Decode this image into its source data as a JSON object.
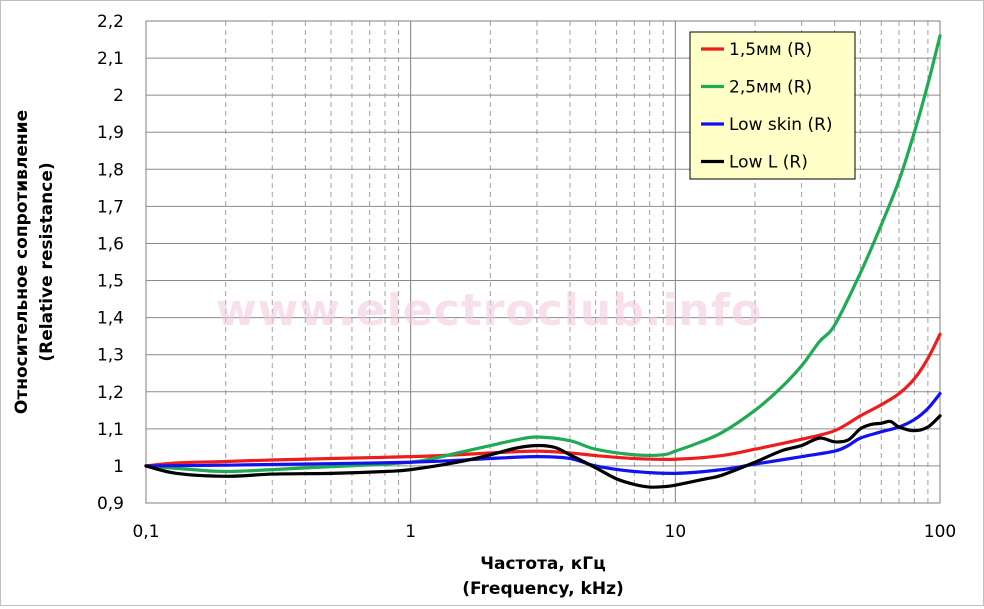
{
  "watermark": "www.electroclub.info",
  "chart_data": {
    "type": "line",
    "title": "",
    "xlabel": [
      "Частота, кГц",
      "(Frequency, kHz)"
    ],
    "ylabel": [
      "Относительное сопротивление",
      "(Relative resistance)"
    ],
    "x_scale": "log",
    "xlim": [
      0.1,
      100
    ],
    "ylim": [
      0.9,
      2.2
    ],
    "x_ticks": [
      0.1,
      1,
      10,
      100
    ],
    "x_tick_labels": [
      "0,1",
      "1",
      "10",
      "100"
    ],
    "y_ticks": [
      0.9,
      1,
      1.1,
      1.2,
      1.3,
      1.4,
      1.5,
      1.6,
      1.7,
      1.8,
      1.9,
      2,
      2.1,
      2.2
    ],
    "y_tick_labels": [
      "0,9",
      "1",
      "1,1",
      "1,2",
      "1,3",
      "1,4",
      "1,5",
      "1,6",
      "1,7",
      "1,8",
      "1,9",
      "2",
      "2,1",
      "2,2"
    ],
    "grid": true,
    "legend": "top-right",
    "series": [
      {
        "name": "1,5мм (R)",
        "color": "#ee1c1c",
        "x": [
          0.1,
          0.13,
          0.2,
          0.3,
          0.5,
          1,
          1.5,
          2,
          3,
          4,
          5,
          7,
          10,
          15,
          20,
          30,
          40,
          50,
          60,
          70,
          80,
          90,
          100
        ],
        "y": [
          1.0,
          1.008,
          1.012,
          1.016,
          1.02,
          1.025,
          1.03,
          1.035,
          1.04,
          1.035,
          1.028,
          1.02,
          1.018,
          1.028,
          1.045,
          1.072,
          1.095,
          1.135,
          1.165,
          1.195,
          1.235,
          1.29,
          1.355
        ]
      },
      {
        "name": "2,5мм (R)",
        "color": "#1faa54",
        "x": [
          0.1,
          0.15,
          0.2,
          0.3,
          0.5,
          1,
          1.5,
          2,
          2.5,
          3,
          4,
          5,
          7,
          9,
          10,
          12,
          15,
          20,
          25,
          30,
          35,
          40,
          50,
          60,
          70,
          80,
          90,
          100
        ],
        "y": [
          1.0,
          0.99,
          0.985,
          0.99,
          0.998,
          1.01,
          1.035,
          1.055,
          1.07,
          1.078,
          1.068,
          1.045,
          1.03,
          1.03,
          1.04,
          1.06,
          1.09,
          1.15,
          1.21,
          1.27,
          1.335,
          1.38,
          1.52,
          1.65,
          1.77,
          1.9,
          2.03,
          2.16
        ]
      },
      {
        "name": "Low skin (R)",
        "color": "#1212ee",
        "x": [
          0.1,
          0.2,
          0.3,
          0.5,
          1,
          1.5,
          2,
          3,
          4,
          5,
          7,
          10,
          15,
          20,
          30,
          40,
          45,
          50,
          60,
          70,
          80,
          90,
          100
        ],
        "y": [
          1.0,
          1.002,
          1.004,
          1.006,
          1.01,
          1.015,
          1.02,
          1.025,
          1.02,
          1.0,
          0.985,
          0.98,
          0.99,
          1.005,
          1.025,
          1.04,
          1.055,
          1.075,
          1.092,
          1.105,
          1.125,
          1.155,
          1.195
        ]
      },
      {
        "name": "Low L (R)",
        "color": "#000000",
        "x": [
          0.1,
          0.13,
          0.2,
          0.3,
          0.5,
          0.8,
          1,
          1.5,
          2,
          2.5,
          3,
          3.5,
          4,
          5,
          6,
          7,
          8,
          9,
          10,
          13,
          15,
          20,
          25,
          30,
          35,
          40,
          45,
          50,
          55,
          60,
          65,
          70,
          80,
          90,
          100
        ],
        "y": [
          1.0,
          0.98,
          0.972,
          0.978,
          0.98,
          0.985,
          0.99,
          1.01,
          1.03,
          1.048,
          1.055,
          1.05,
          1.03,
          0.995,
          0.965,
          0.95,
          0.943,
          0.944,
          0.948,
          0.965,
          0.975,
          1.01,
          1.04,
          1.055,
          1.075,
          1.065,
          1.07,
          1.1,
          1.112,
          1.115,
          1.12,
          1.105,
          1.095,
          1.105,
          1.135
        ]
      }
    ]
  }
}
